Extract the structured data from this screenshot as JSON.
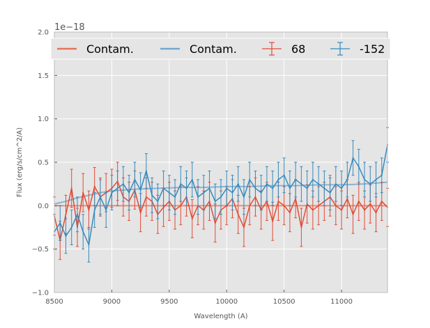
{
  "chart_data": {
    "type": "line",
    "title": "",
    "xlabel": "Wavelength (A)",
    "ylabel": "Flux (erg/s/cm^2/A)",
    "offset_text": "1e−18",
    "xlim": [
      8500,
      11400
    ],
    "ylim": [
      -1.0,
      2.0
    ],
    "xticks": [
      8500,
      9000,
      9500,
      10000,
      10500,
      11000
    ],
    "xtick_labels": [
      "8500",
      "9000",
      "9500",
      "10000",
      "10500",
      "11000"
    ],
    "yticks": [
      -1.0,
      -0.5,
      0.0,
      0.5,
      1.0,
      1.5,
      2.0
    ],
    "ytick_labels": [
      "−1.0",
      "−0.5",
      "0.0",
      "0.5",
      "1.0",
      "1.5",
      "2.0"
    ],
    "y_scale_note": "values are in units of 1e-18",
    "grid": true,
    "legend_position": "top (full width, 4 columns)",
    "legend": [
      {
        "label": "Contam.",
        "kind": "line",
        "color": "#e5735f"
      },
      {
        "label": "Contam.",
        "kind": "line",
        "color": "#6fa8cf"
      },
      {
        "label": "68",
        "kind": "errorbar",
        "color": "#e24a33"
      },
      {
        "label": "-152",
        "kind": "errorbar",
        "color": "#348abd"
      }
    ],
    "colors": {
      "background": "#e5e5e5",
      "grid": "#ffffff",
      "red": "#e24a33",
      "blue": "#348abd",
      "red_contam": "#e5735f",
      "blue_contam": "#6fa8cf"
    },
    "series": [
      {
        "name": "Contam.",
        "kind": "contamination",
        "color": "#e5735f",
        "x": [
          8500,
          9000,
          9500,
          10000,
          10500,
          11000,
          11400
        ],
        "y": [
          0.0,
          0.0,
          0.0,
          0.0,
          0.0,
          0.0,
          0.0
        ]
      },
      {
        "name": "Contam.",
        "kind": "contamination",
        "color": "#6fa8cf",
        "x": [
          8500,
          8600,
          8700,
          8800,
          8900,
          9000,
          9100,
          9200,
          9400,
          9600,
          9800,
          10000,
          10200,
          10400,
          10600,
          10800,
          11000,
          11200,
          11400
        ],
        "y": [
          0.02,
          0.05,
          0.09,
          0.12,
          0.15,
          0.17,
          0.18,
          0.19,
          0.2,
          0.21,
          0.21,
          0.22,
          0.22,
          0.23,
          0.23,
          0.24,
          0.24,
          0.25,
          0.27
        ]
      },
      {
        "name": "68",
        "kind": "data",
        "color": "#e24a33",
        "err": 0.22,
        "x": [
          8500,
          8550,
          8600,
          8650,
          8700,
          8750,
          8800,
          8850,
          8900,
          8950,
          9000,
          9050,
          9100,
          9150,
          9200,
          9250,
          9300,
          9350,
          9400,
          9450,
          9500,
          9550,
          9600,
          9650,
          9700,
          9750,
          9800,
          9850,
          9900,
          9950,
          10000,
          10050,
          10100,
          10150,
          10200,
          10250,
          10300,
          10350,
          10400,
          10450,
          10500,
          10550,
          10600,
          10650,
          10700,
          10750,
          10800,
          10850,
          10900,
          10950,
          11000,
          11050,
          11100,
          11150,
          11200,
          11250,
          11300,
          11350,
          11400
        ],
        "y": [
          -0.12,
          -0.4,
          -0.1,
          0.2,
          -0.25,
          0.15,
          -0.05,
          0.22,
          0.1,
          0.15,
          0.2,
          0.28,
          0.1,
          0.05,
          0.18,
          -0.08,
          0.1,
          0.05,
          -0.1,
          -0.02,
          0.05,
          -0.05,
          0.0,
          0.1,
          -0.15,
          0.0,
          -0.05,
          0.05,
          -0.2,
          -0.05,
          0.0,
          0.08,
          -0.1,
          -0.25,
          0.0,
          0.1,
          -0.05,
          0.05,
          -0.18,
          0.05,
          0.0,
          -0.08,
          0.08,
          -0.25,
          0.02,
          -0.05,
          0.0,
          0.05,
          0.1,
          0.0,
          -0.05,
          0.08,
          -0.1,
          0.05,
          -0.05,
          0.02,
          -0.08,
          0.05,
          -0.02
        ]
      },
      {
        "name": "-152",
        "kind": "data",
        "color": "#348abd",
        "err": 0.2,
        "x": [
          8500,
          8550,
          8600,
          8650,
          8700,
          8750,
          8800,
          8850,
          8900,
          8950,
          9000,
          9050,
          9100,
          9150,
          9200,
          9250,
          9300,
          9350,
          9400,
          9450,
          9500,
          9550,
          9600,
          9650,
          9700,
          9750,
          9800,
          9850,
          9900,
          9950,
          10000,
          10050,
          10100,
          10150,
          10200,
          10250,
          10300,
          10350,
          10400,
          10450,
          10500,
          10550,
          10600,
          10650,
          10700,
          10750,
          10800,
          10850,
          10900,
          10950,
          11000,
          11050,
          11100,
          11150,
          11200,
          11250,
          11300,
          11350,
          11400
        ],
        "y": [
          -0.3,
          -0.2,
          -0.35,
          -0.25,
          -0.1,
          -0.3,
          -0.45,
          -0.05,
          0.1,
          -0.05,
          0.15,
          0.2,
          0.25,
          0.15,
          0.3,
          0.18,
          0.4,
          0.12,
          0.05,
          0.2,
          0.15,
          0.1,
          0.25,
          0.2,
          0.3,
          0.1,
          0.15,
          0.2,
          0.05,
          0.1,
          0.2,
          0.15,
          0.25,
          0.1,
          0.3,
          0.2,
          0.15,
          0.25,
          0.2,
          0.3,
          0.35,
          0.2,
          0.3,
          0.25,
          0.2,
          0.3,
          0.25,
          0.2,
          0.15,
          0.25,
          0.2,
          0.3,
          0.55,
          0.45,
          0.3,
          0.25,
          0.3,
          0.35,
          0.7
        ]
      }
    ]
  }
}
